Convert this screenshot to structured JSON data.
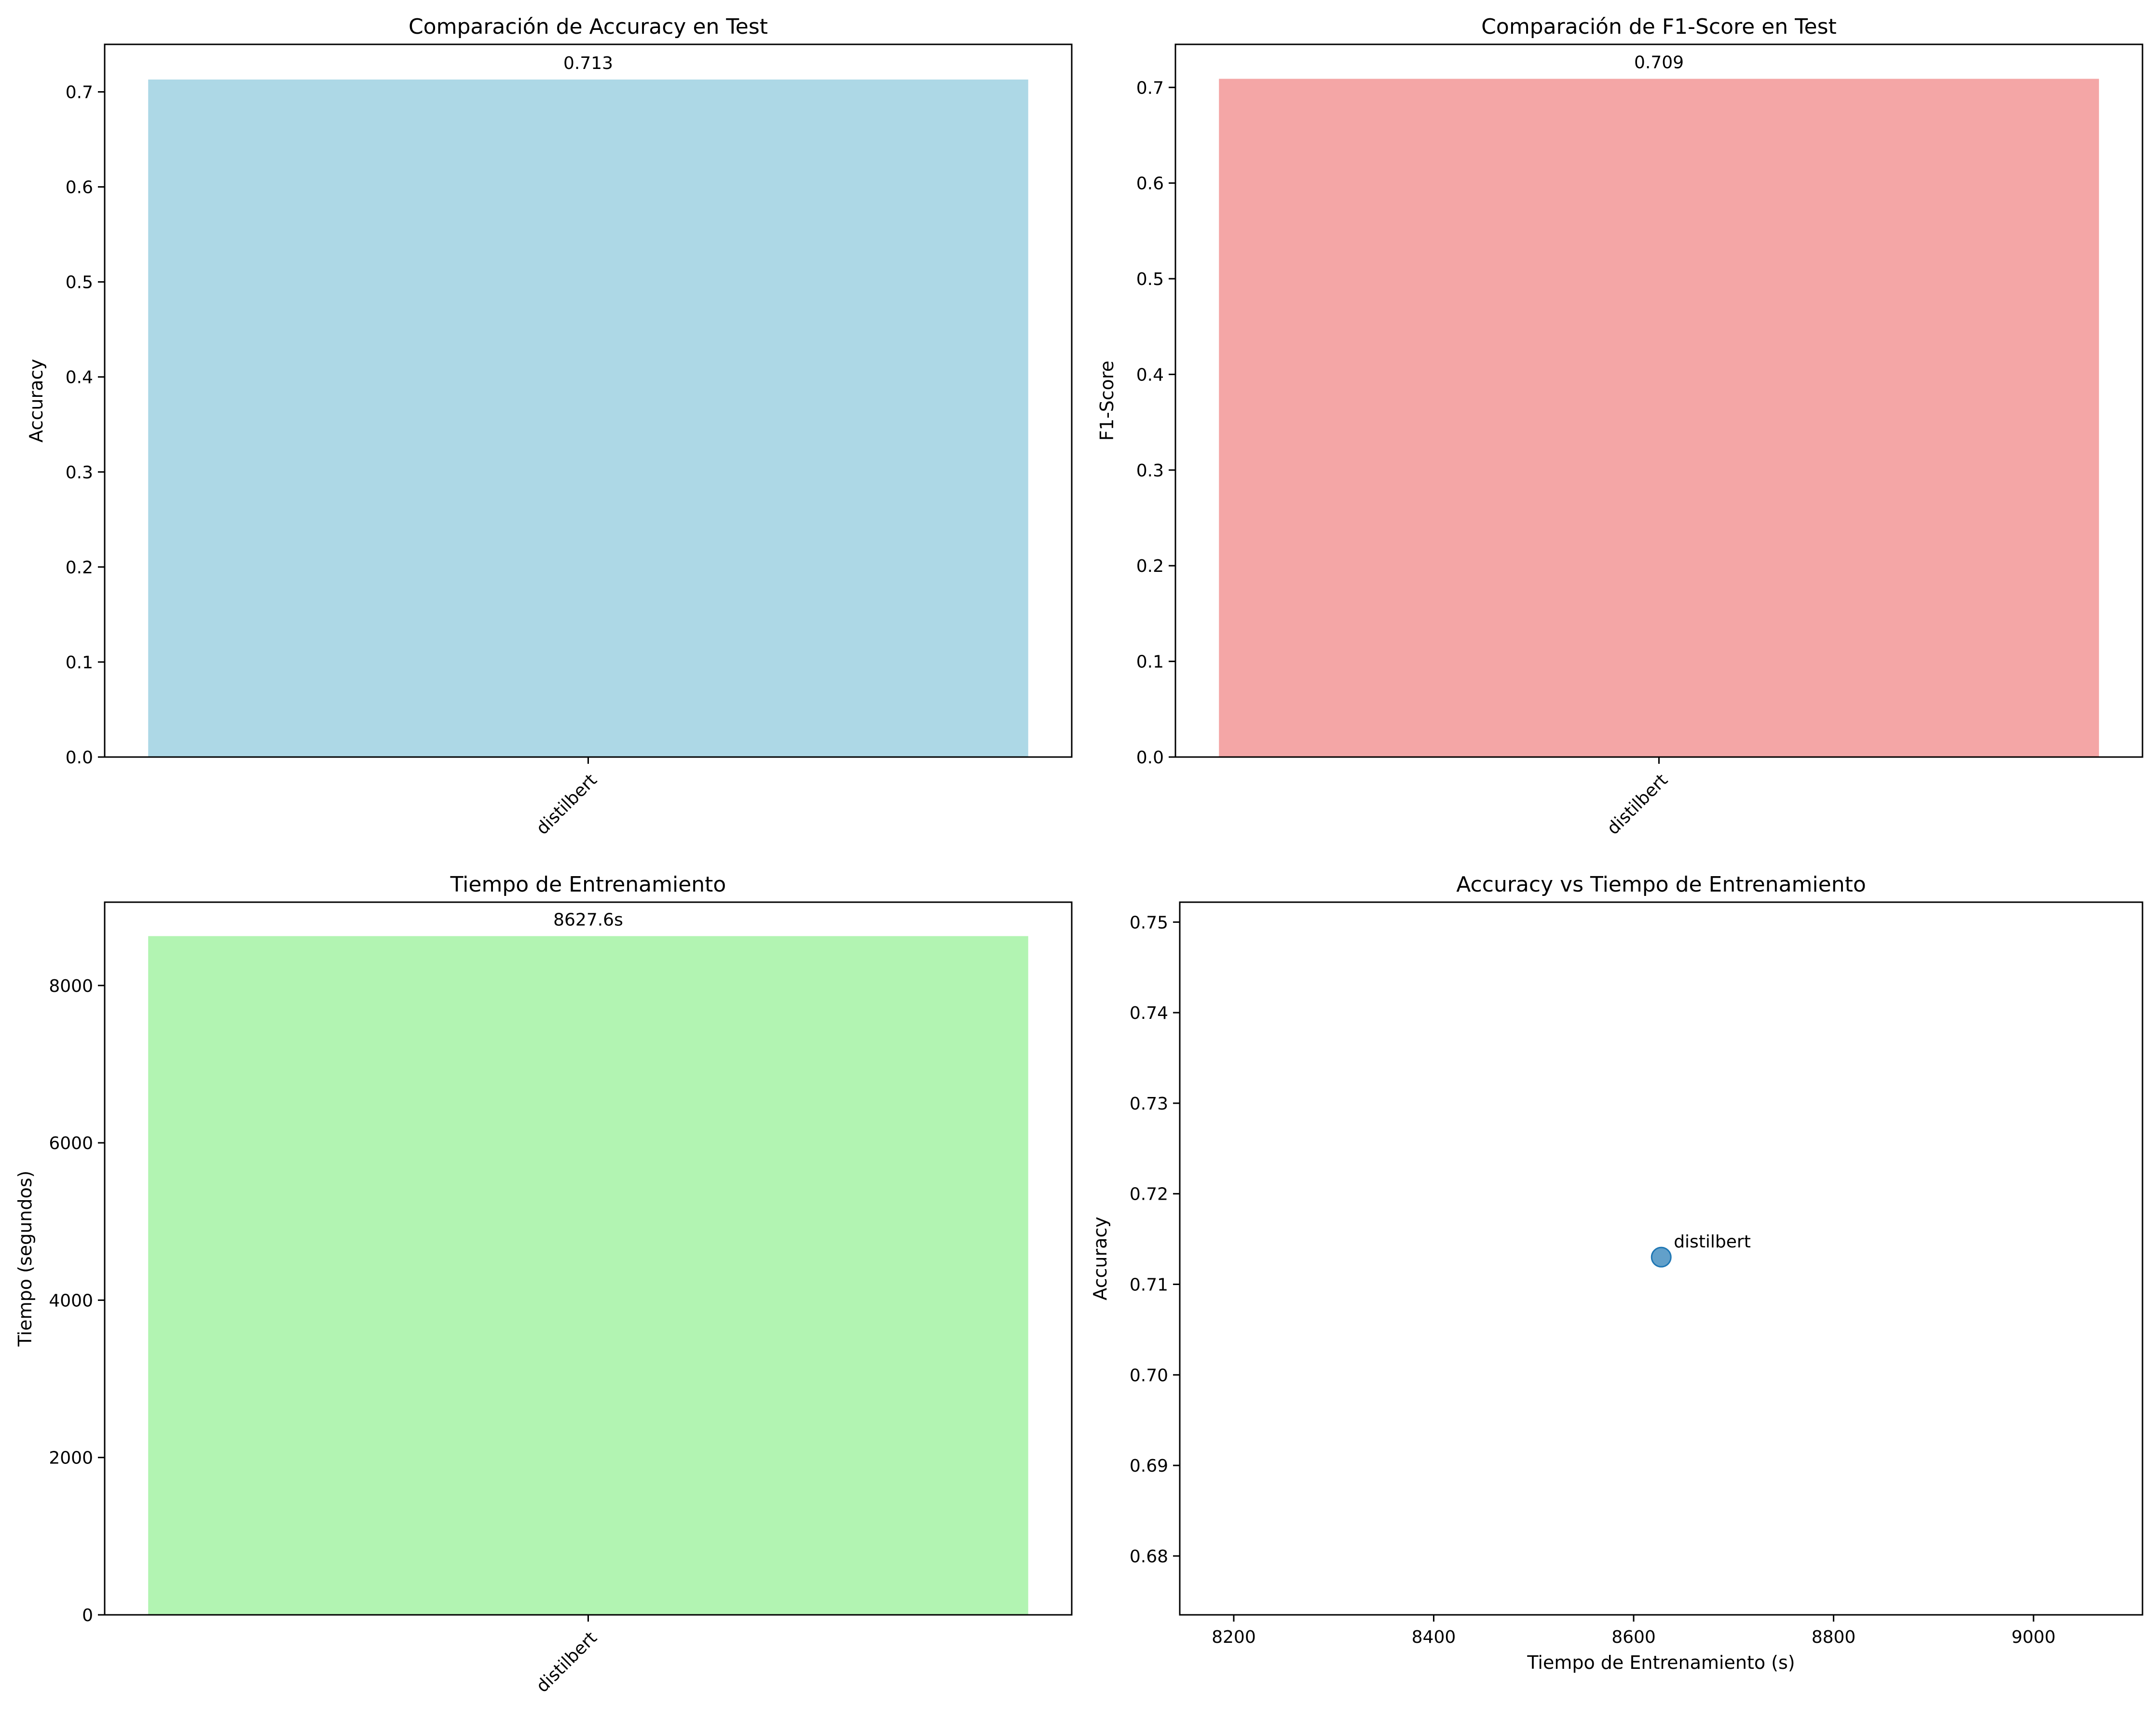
{
  "chart_data": [
    {
      "type": "bar",
      "title": "Comparación de Accuracy en Test",
      "xlabel": "",
      "ylabel": "Accuracy",
      "categories": [
        "distilbert"
      ],
      "values": [
        0.713
      ],
      "value_labels": [
        "0.713"
      ],
      "ylim": [
        0,
        0.75
      ],
      "yticks": [
        0.0,
        0.1,
        0.2,
        0.3,
        0.4,
        0.5,
        0.6,
        0.7
      ],
      "ytick_labels": [
        "0.0",
        "0.1",
        "0.2",
        "0.3",
        "0.4",
        "0.5",
        "0.6",
        "0.7"
      ],
      "xtick_rotation": "45deg",
      "color": "#add8e6",
      "grid": false
    },
    {
      "type": "bar",
      "title": "Comparación de F1-Score en Test",
      "xlabel": "",
      "ylabel": "F1-Score",
      "categories": [
        "distilbert"
      ],
      "values": [
        0.709
      ],
      "value_labels": [
        "0.709"
      ],
      "ylim": [
        0,
        0.745
      ],
      "yticks": [
        0.0,
        0.1,
        0.2,
        0.3,
        0.4,
        0.5,
        0.6,
        0.7
      ],
      "ytick_labels": [
        "0.0",
        "0.1",
        "0.2",
        "0.3",
        "0.4",
        "0.5",
        "0.6",
        "0.7"
      ],
      "xtick_rotation": "45deg",
      "color": "#f4a6a6",
      "grid": false
    },
    {
      "type": "bar",
      "title": "Tiempo de Entrenamiento",
      "xlabel": "",
      "ylabel": "Tiempo (segundos)",
      "categories": [
        "distilbert"
      ],
      "values": [
        8627.6
      ],
      "value_labels": [
        "8627.6s"
      ],
      "ylim": [
        0,
        9059
      ],
      "yticks": [
        0,
        2000,
        4000,
        6000,
        8000
      ],
      "ytick_labels": [
        "0",
        "2000",
        "4000",
        "6000",
        "8000"
      ],
      "xtick_rotation": "45deg",
      "color": "#b2f4b2",
      "grid": false
    },
    {
      "type": "scatter",
      "title": "Accuracy vs Tiempo de Entrenamiento",
      "xlabel": "Tiempo de Entrenamiento (s)",
      "ylabel": "Accuracy",
      "points": [
        {
          "x": 8627.6,
          "y": 0.713,
          "label": "distilbert"
        }
      ],
      "xlim": [
        8146,
        9109
      ],
      "ylim": [
        0.6735,
        0.7522
      ],
      "xticks": [
        8200,
        8400,
        8600,
        8800,
        9000
      ],
      "xtick_labels": [
        "8200",
        "8400",
        "8600",
        "8800",
        "9000"
      ],
      "yticks": [
        0.68,
        0.69,
        0.7,
        0.71,
        0.72,
        0.73,
        0.74,
        0.75
      ],
      "ytick_labels": [
        "0.68",
        "0.69",
        "0.70",
        "0.71",
        "0.72",
        "0.73",
        "0.74",
        "0.75"
      ],
      "color": "#1f77b4",
      "grid": false
    }
  ]
}
